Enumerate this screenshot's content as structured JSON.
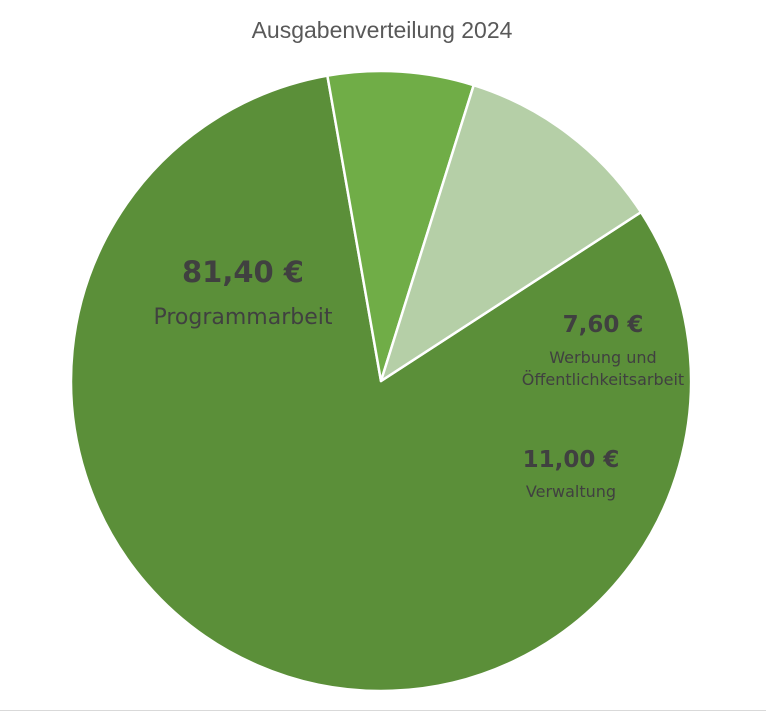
{
  "chart_data": {
    "type": "pie",
    "title": "Ausgabenverteilung 2024",
    "unit": "€",
    "slices": [
      {
        "label": "Programmarbeit",
        "value": 81.4,
        "value_label": "81,40 €",
        "color": "#5b8f39"
      },
      {
        "label": "Werbung und Öffentlichkeitsarbeit",
        "label_lines": [
          "Werbung und",
          "Öffentlichkeitsarbeit"
        ],
        "value": 7.6,
        "value_label": "7,60 €",
        "color": "#70ad47"
      },
      {
        "label": "Verwaltung",
        "value": 11.0,
        "value_label": "11,00 €",
        "color": "#b5cfa7"
      }
    ],
    "legend": "none",
    "grid": false
  }
}
